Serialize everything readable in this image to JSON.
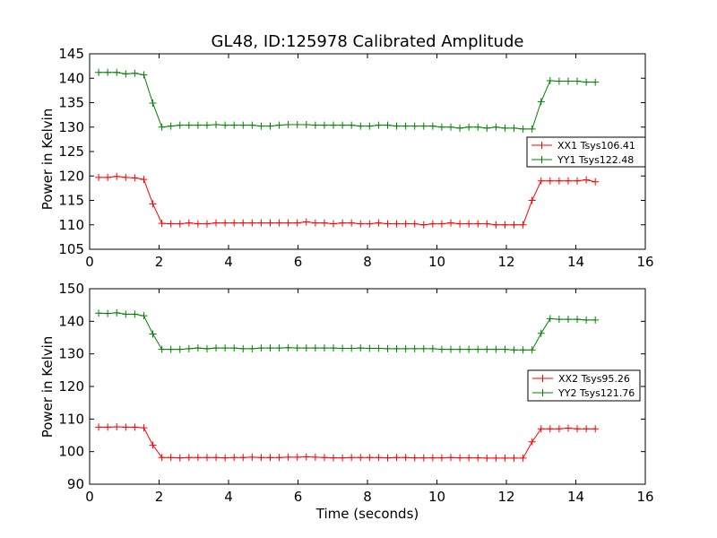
{
  "figure": {
    "title": "GL48, ID:125978 Calibrated Amplitude",
    "xlabel": "Time (seconds)"
  },
  "chart_data": [
    {
      "type": "line",
      "ylabel": "Power in Kelvin",
      "xlim": [
        0,
        16
      ],
      "ylim": [
        105,
        145
      ],
      "xticks": [
        "0",
        "2",
        "4",
        "6",
        "8",
        "10",
        "12",
        "14",
        "16"
      ],
      "yticks": [
        "105",
        "110",
        "115",
        "120",
        "125",
        "130",
        "135",
        "140",
        "145"
      ],
      "legend_position": "right",
      "x": [
        0.26,
        0.52,
        0.78,
        1.04,
        1.3,
        1.56,
        1.82,
        2.08,
        2.34,
        2.6,
        2.86,
        3.12,
        3.38,
        3.64,
        3.9,
        4.16,
        4.42,
        4.68,
        4.94,
        5.2,
        5.46,
        5.72,
        5.98,
        6.24,
        6.5,
        6.76,
        7.02,
        7.28,
        7.54,
        7.8,
        8.06,
        8.32,
        8.58,
        8.84,
        9.1,
        9.36,
        9.62,
        9.88,
        10.14,
        10.4,
        10.66,
        10.92,
        11.18,
        11.44,
        11.7,
        11.96,
        12.22,
        12.48,
        12.74,
        13.0,
        13.26,
        13.52,
        13.78,
        14.04,
        14.3,
        14.56
      ],
      "series": [
        {
          "name": "XX1 Tsys106.41",
          "color": "#ff0000",
          "values": [
            119.7,
            119.7,
            119.9,
            119.7,
            119.6,
            119.3,
            114.3,
            110.3,
            110.2,
            110.2,
            110.4,
            110.2,
            110.2,
            110.4,
            110.4,
            110.4,
            110.4,
            110.4,
            110.4,
            110.4,
            110.4,
            110.4,
            110.4,
            110.6,
            110.4,
            110.4,
            110.2,
            110.4,
            110.4,
            110.2,
            110.2,
            110.4,
            110.2,
            110.2,
            110.2,
            110.2,
            110.0,
            110.2,
            110.2,
            110.4,
            110.2,
            110.2,
            110.2,
            110.2,
            110.0,
            110.0,
            110.0,
            110.0,
            115.0,
            119.0,
            119.0,
            119.0,
            119.0,
            119.0,
            119.2,
            118.8
          ]
        },
        {
          "name": "YY1 Tsys122.48",
          "color": "#008000",
          "values": [
            141.2,
            141.2,
            141.2,
            140.9,
            141.0,
            140.7,
            134.9,
            130.0,
            130.2,
            130.4,
            130.4,
            130.4,
            130.4,
            130.5,
            130.4,
            130.4,
            130.4,
            130.4,
            130.2,
            130.2,
            130.4,
            130.5,
            130.5,
            130.5,
            130.4,
            130.4,
            130.4,
            130.4,
            130.4,
            130.2,
            130.2,
            130.4,
            130.4,
            130.2,
            130.2,
            130.2,
            130.2,
            130.2,
            130.0,
            130.0,
            129.8,
            130.0,
            130.0,
            129.8,
            130.0,
            129.8,
            129.8,
            129.6,
            129.6,
            135.2,
            139.5,
            139.4,
            139.4,
            139.4,
            139.2,
            139.2
          ]
        }
      ]
    },
    {
      "type": "line",
      "ylabel": "Power in Kelvin",
      "xlim": [
        0,
        16
      ],
      "ylim": [
        90,
        150
      ],
      "xticks": [
        "0",
        "2",
        "4",
        "6",
        "8",
        "10",
        "12",
        "14",
        "16"
      ],
      "yticks": [
        "90",
        "100",
        "110",
        "120",
        "130",
        "140",
        "150"
      ],
      "legend_position": "right",
      "x": [
        0.26,
        0.52,
        0.78,
        1.04,
        1.3,
        1.56,
        1.82,
        2.08,
        2.34,
        2.6,
        2.86,
        3.12,
        3.38,
        3.64,
        3.9,
        4.16,
        4.42,
        4.68,
        4.94,
        5.2,
        5.46,
        5.72,
        5.98,
        6.24,
        6.5,
        6.76,
        7.02,
        7.28,
        7.54,
        7.8,
        8.06,
        8.32,
        8.58,
        8.84,
        9.1,
        9.36,
        9.62,
        9.88,
        10.14,
        10.4,
        10.66,
        10.92,
        11.18,
        11.44,
        11.7,
        11.96,
        12.22,
        12.48,
        12.74,
        13.0,
        13.26,
        13.52,
        13.78,
        14.04,
        14.3,
        14.56
      ],
      "series": [
        {
          "name": "XX2 Tsys95.26",
          "color": "#ff0000",
          "values": [
            107.5,
            107.5,
            107.6,
            107.5,
            107.5,
            107.3,
            102.0,
            98.2,
            98.2,
            98.1,
            98.2,
            98.2,
            98.2,
            98.2,
            98.1,
            98.2,
            98.2,
            98.3,
            98.2,
            98.2,
            98.2,
            98.3,
            98.3,
            98.4,
            98.3,
            98.2,
            98.1,
            98.1,
            98.2,
            98.2,
            98.2,
            98.2,
            98.1,
            98.2,
            98.2,
            98.1,
            98.1,
            98.1,
            98.1,
            98.2,
            98.1,
            98.1,
            98.1,
            98.0,
            98.0,
            98.0,
            98.0,
            98.0,
            103.0,
            107.0,
            107.0,
            107.0,
            107.2,
            107.0,
            107.0,
            107.0
          ]
        },
        {
          "name": "YY2 Tsys121.76",
          "color": "#008000",
          "values": [
            142.5,
            142.4,
            142.6,
            142.2,
            142.2,
            141.7,
            136.1,
            131.4,
            131.4,
            131.4,
            131.6,
            131.8,
            131.6,
            131.8,
            131.8,
            131.8,
            131.6,
            131.6,
            131.8,
            131.8,
            131.8,
            131.9,
            131.8,
            131.8,
            131.8,
            131.8,
            131.8,
            131.7,
            131.7,
            131.8,
            131.7,
            131.7,
            131.6,
            131.6,
            131.6,
            131.6,
            131.6,
            131.6,
            131.4,
            131.4,
            131.4,
            131.4,
            131.4,
            131.4,
            131.4,
            131.4,
            131.2,
            131.2,
            131.2,
            136.3,
            140.8,
            140.6,
            140.6,
            140.6,
            140.4,
            140.4
          ]
        }
      ]
    }
  ]
}
